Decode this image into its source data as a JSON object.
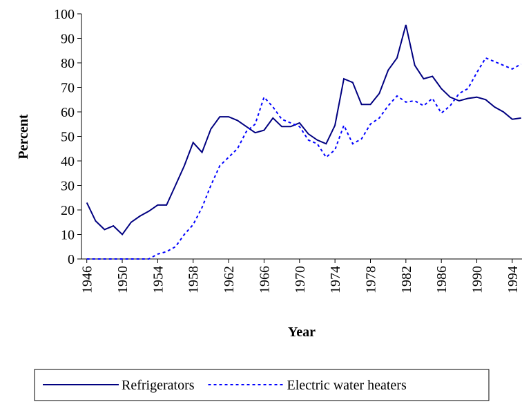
{
  "chart_data": {
    "type": "line",
    "x_label": "Year",
    "y_label": "Percent",
    "x": [
      1946,
      1947,
      1948,
      1949,
      1950,
      1951,
      1952,
      1953,
      1954,
      1955,
      1956,
      1957,
      1958,
      1959,
      1960,
      1961,
      1962,
      1963,
      1964,
      1965,
      1966,
      1967,
      1968,
      1969,
      1970,
      1971,
      1972,
      1973,
      1974,
      1975,
      1976,
      1977,
      1978,
      1979,
      1980,
      1981,
      1982,
      1983,
      1984,
      1985,
      1986,
      1987,
      1988,
      1989,
      1990,
      1991,
      1992,
      1993,
      1994,
      1995
    ],
    "series": [
      {
        "name": "Refrigerators",
        "color": "#000080",
        "line_style": "solid",
        "values": [
          23,
          15.5,
          12,
          13.5,
          10,
          15,
          17.5,
          19.5,
          22,
          22,
          30,
          38,
          47.5,
          43.5,
          53,
          58,
          58,
          56.5,
          54,
          51.5,
          52.5,
          57.5,
          54,
          54,
          55.5,
          51,
          48.5,
          47,
          54.5,
          73.5,
          72,
          63,
          63,
          67.5,
          77,
          82,
          95.5,
          79,
          73.5,
          74.5,
          69.5,
          66,
          64.5,
          65.5,
          66,
          65,
          62,
          60,
          57,
          57.5
        ]
      },
      {
        "name": "Electric water heaters",
        "color": "#0000ff",
        "line_style": "dotted",
        "values": [
          0,
          0,
          0,
          0,
          0,
          0,
          0,
          0,
          2,
          3,
          5,
          10,
          14,
          21,
          30,
          38,
          41.5,
          45,
          52,
          55,
          66,
          62,
          57,
          55.5,
          54,
          48.5,
          47,
          41.5,
          44.5,
          54.5,
          47,
          49,
          55,
          57.5,
          62.5,
          66.5,
          64,
          64.5,
          62.5,
          65.5,
          59.5,
          62.5,
          67.5,
          69.5,
          76,
          82,
          80.5,
          79,
          77.5,
          79.5
        ]
      }
    ],
    "xlim": [
      1945.4,
      1995.1
    ],
    "xticks": [
      1946,
      1950,
      1954,
      1958,
      1962,
      1966,
      1970,
      1974,
      1978,
      1982,
      1986,
      1990,
      1994
    ],
    "ylim": [
      0,
      100
    ],
    "yticks": [
      0,
      10,
      20,
      30,
      40,
      50,
      60,
      70,
      80,
      90,
      100
    ],
    "legend": "bottom"
  }
}
